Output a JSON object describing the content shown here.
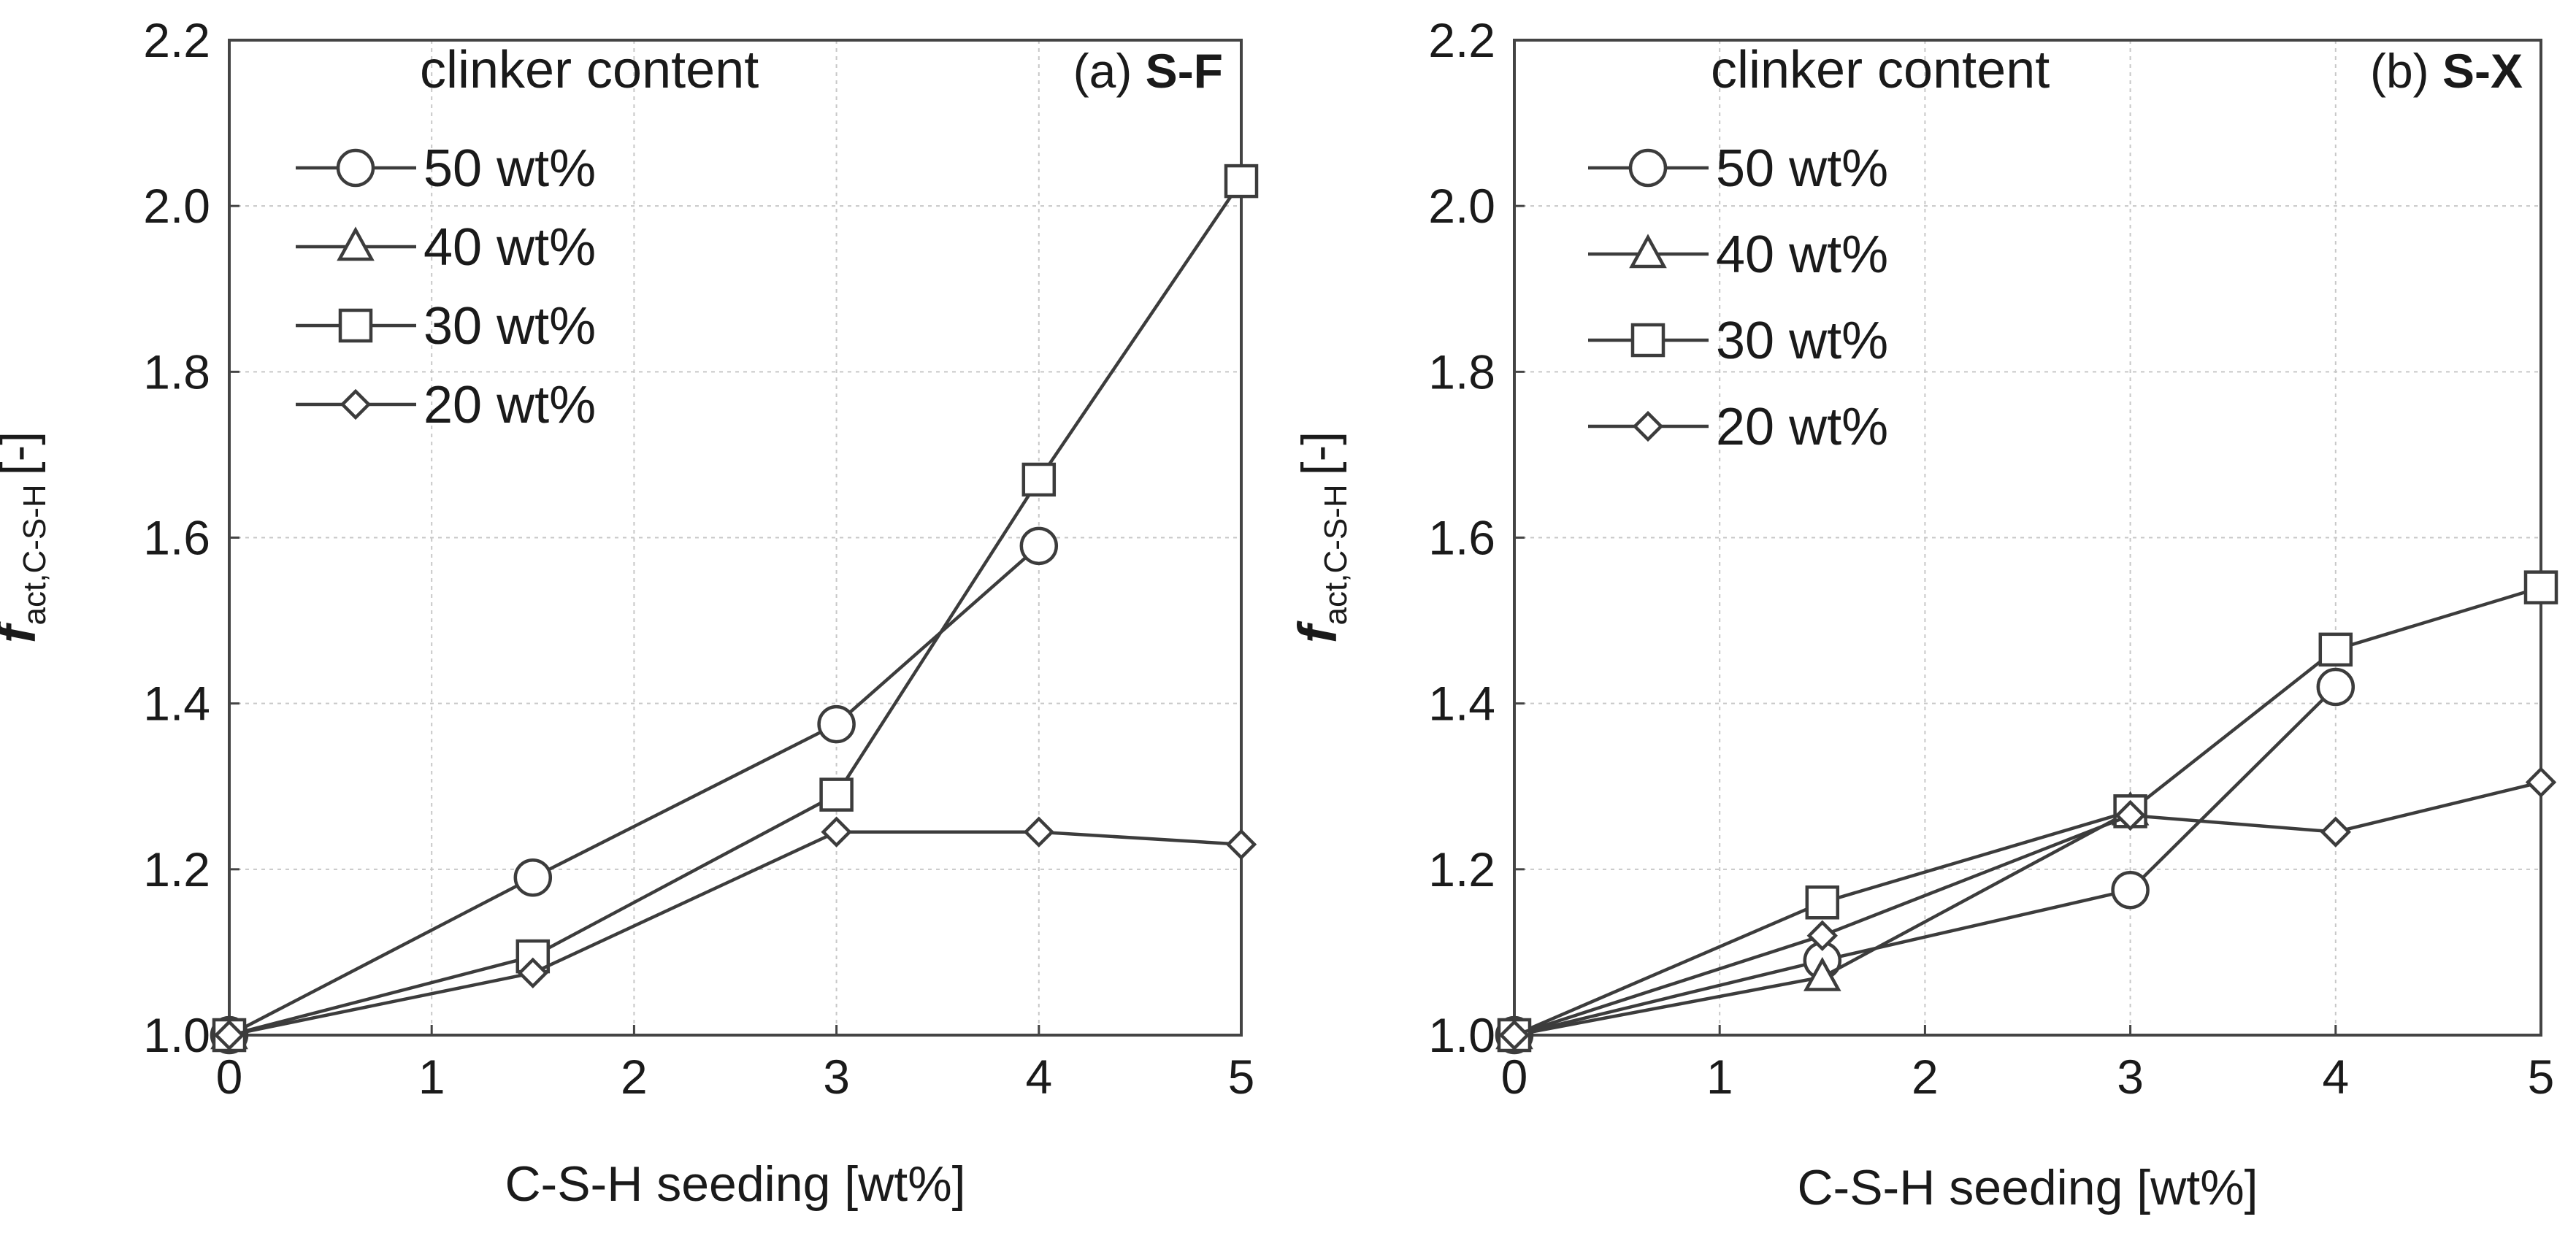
{
  "chart_data": [
    {
      "type": "line",
      "panel_tag": "(a)",
      "panel_name": "S-F",
      "title": "(a) S-F",
      "xlabel": "C-S-H seeding [wt%]",
      "ylabel_main": "f",
      "ylabel_sub": "act,C-S-H",
      "ylabel_unit": "[-]",
      "xlim": [
        0,
        5
      ],
      "ylim": [
        1.0,
        2.2
      ],
      "x_ticks": [
        "0",
        "1",
        "2",
        "3",
        "4",
        "5"
      ],
      "y_ticks": [
        "1.0",
        "1.2",
        "1.4",
        "1.6",
        "1.8",
        "2.0",
        "2.2"
      ],
      "grid": true,
      "legend_title": "clinker content",
      "legend_position": "top-left",
      "series": [
        {
          "name": "50 wt%",
          "marker": "circle",
          "x": [
            0,
            1.5,
            3,
            4
          ],
          "y": [
            1.0,
            1.19,
            1.375,
            1.59
          ]
        },
        {
          "name": "40 wt%",
          "marker": "triangle",
          "x": [
            0
          ],
          "y": [
            1.0
          ]
        },
        {
          "name": "30 wt%",
          "marker": "square",
          "x": [
            0,
            1.5,
            3,
            4,
            5
          ],
          "y": [
            1.0,
            1.095,
            1.29,
            1.67,
            2.03
          ]
        },
        {
          "name": "20 wt%",
          "marker": "diamond",
          "x": [
            0,
            1.5,
            3,
            4,
            5
          ],
          "y": [
            1.0,
            1.075,
            1.245,
            1.245,
            1.23
          ]
        }
      ]
    },
    {
      "type": "line",
      "panel_tag": "(b)",
      "panel_name": "S-X",
      "title": "(b) S-X",
      "xlabel": "C-S-H seeding [wt%]",
      "ylabel_main": "f",
      "ylabel_sub": "act,C-S-H",
      "ylabel_unit": "[-]",
      "xlim": [
        0,
        5
      ],
      "ylim": [
        1.0,
        2.2
      ],
      "x_ticks": [
        "0",
        "1",
        "2",
        "3",
        "4",
        "5"
      ],
      "y_ticks": [
        "1.0",
        "1.2",
        "1.4",
        "1.6",
        "1.8",
        "2.0",
        "2.2"
      ],
      "grid": true,
      "legend_title": "clinker content",
      "legend_position": "top-left",
      "series": [
        {
          "name": "50 wt%",
          "marker": "circle",
          "x": [
            0,
            1.5,
            3,
            4
          ],
          "y": [
            1.0,
            1.09,
            1.175,
            1.42
          ]
        },
        {
          "name": "40 wt%",
          "marker": "triangle",
          "x": [
            0,
            1.5,
            3
          ],
          "y": [
            1.0,
            1.07,
            1.27
          ]
        },
        {
          "name": "30 wt%",
          "marker": "square",
          "x": [
            0,
            1.5,
            3,
            4,
            5
          ],
          "y": [
            1.0,
            1.16,
            1.27,
            1.465,
            1.54
          ]
        },
        {
          "name": "20 wt%",
          "marker": "diamond",
          "x": [
            0,
            1.5,
            3,
            4,
            5
          ],
          "y": [
            1.0,
            1.12,
            1.265,
            1.245,
            1.305
          ]
        }
      ]
    }
  ]
}
